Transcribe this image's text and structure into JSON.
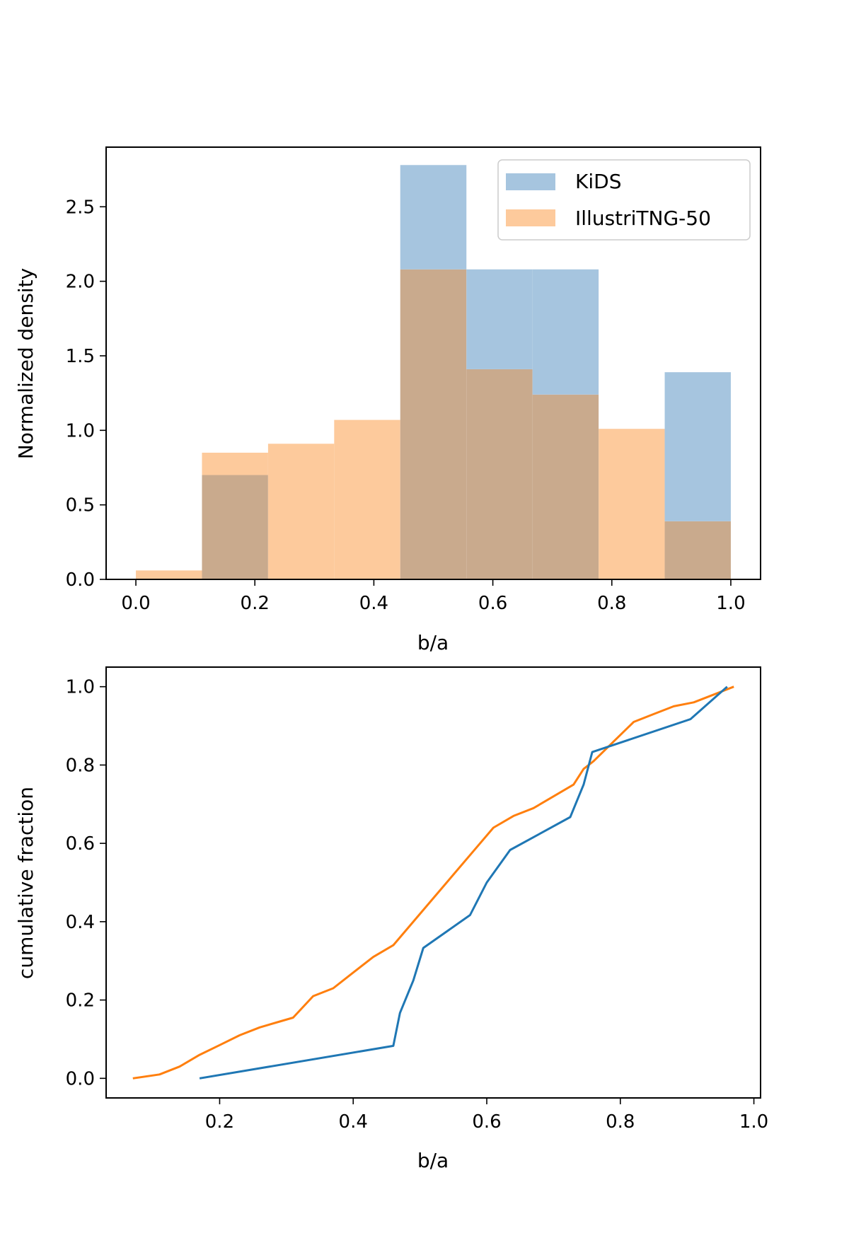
{
  "colors": {
    "kids": "#1f77b4",
    "illustris": "#ff7f0e",
    "kids_fill": "#a6c5df",
    "illustris_fill": "#fdca9c",
    "overlap": "#c9aa8d"
  },
  "chart_data": [
    {
      "type": "bar",
      "subtype": "histogram",
      "title": "",
      "xlabel": "b/a",
      "ylabel": "Normalized density",
      "xlim": [
        -0.05,
        1.05
      ],
      "ylim": [
        0,
        2.9
      ],
      "xticks": [
        "0.0",
        "0.2",
        "0.4",
        "0.6",
        "0.8",
        "1.0"
      ],
      "yticks": [
        "0.0",
        "0.5",
        "1.0",
        "1.5",
        "2.0",
        "2.5"
      ],
      "legend_position": "top-right",
      "bin_edges": [
        0.0,
        0.1111,
        0.2222,
        0.3333,
        0.4444,
        0.5556,
        0.6667,
        0.7778,
        0.8889,
        1.0
      ],
      "series": [
        {
          "name": "KiDS",
          "values": [
            0.0,
            0.7,
            0.0,
            0.0,
            2.78,
            2.08,
            2.08,
            0.0,
            1.39
          ]
        },
        {
          "name": "IllustriTNG-50",
          "values": [
            0.06,
            0.85,
            0.91,
            1.07,
            2.08,
            1.41,
            1.24,
            1.01,
            0.39
          ]
        }
      ]
    },
    {
      "type": "line",
      "title": "",
      "xlabel": "b/a",
      "ylabel": "cumulative fraction",
      "xlim": [
        0.03,
        1.01
      ],
      "ylim": [
        -0.05,
        1.05
      ],
      "xticks": [
        "0.2",
        "0.4",
        "0.6",
        "0.8",
        "1.0"
      ],
      "yticks": [
        "0.0",
        "0.2",
        "0.4",
        "0.6",
        "0.8",
        "1.0"
      ],
      "series": [
        {
          "name": "KiDS",
          "x": [
            0.17,
            0.46,
            0.47,
            0.49,
            0.505,
            0.575,
            0.6,
            0.635,
            0.725,
            0.745,
            0.758,
            0.905,
            0.96
          ],
          "y": [
            0.0,
            0.083,
            0.167,
            0.25,
            0.333,
            0.417,
            0.5,
            0.583,
            0.667,
            0.75,
            0.833,
            0.917,
            1.0
          ]
        },
        {
          "name": "IllustriTNG-50",
          "x": [
            0.07,
            0.11,
            0.14,
            0.17,
            0.2,
            0.23,
            0.26,
            0.29,
            0.31,
            0.34,
            0.37,
            0.4,
            0.43,
            0.46,
            0.49,
            0.52,
            0.55,
            0.58,
            0.61,
            0.64,
            0.67,
            0.7,
            0.73,
            0.745,
            0.76,
            0.79,
            0.82,
            0.85,
            0.88,
            0.91,
            0.94,
            0.97
          ],
          "y": [
            0.0,
            0.01,
            0.03,
            0.06,
            0.085,
            0.11,
            0.13,
            0.145,
            0.155,
            0.21,
            0.23,
            0.27,
            0.31,
            0.34,
            0.4,
            0.46,
            0.52,
            0.58,
            0.64,
            0.67,
            0.69,
            0.72,
            0.75,
            0.79,
            0.81,
            0.86,
            0.91,
            0.93,
            0.95,
            0.96,
            0.98,
            1.0
          ]
        }
      ]
    }
  ]
}
